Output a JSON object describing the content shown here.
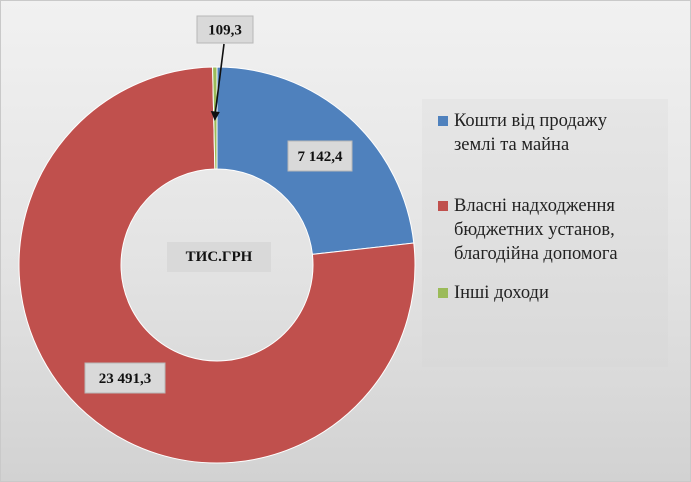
{
  "chart_data": {
    "type": "pie",
    "variant": "donut",
    "center_label": "ТИС.ГРН",
    "categories": [
      "Кошти від продажу землі та майна",
      "Власні надходження бюджетних установ, благодійна допомога",
      "Інші доходи"
    ],
    "legend_display": [
      "Кошти від продажу\nземлі та майна",
      "Власні надходження\nбюджетних установ,\nблагодійна допомога",
      "Інші доходи"
    ],
    "values": [
      7142.4,
      23491.3,
      109.3
    ],
    "value_labels": [
      "7 142,4",
      "23 491,3",
      "109,3"
    ],
    "colors": [
      "#4F81BD",
      "#C0504D",
      "#9BBB59"
    ],
    "start_angle_deg": 0,
    "direction": "clockwise",
    "legend_position": "right"
  }
}
